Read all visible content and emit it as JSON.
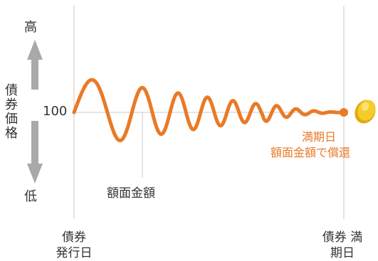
{
  "price_axis": {
    "title": "債券価格",
    "high": "高",
    "low": "低",
    "par": "100"
  },
  "labels": {
    "face_value": "額面金額",
    "issue_date": "債券 発行日",
    "maturity_date": "債券 満期日",
    "maturity_note_line1": "満期日",
    "maturity_note_line2": "額面金額で償還"
  },
  "colors": {
    "price_line": "#E97A26",
    "axis_arrow": "#A9A9A9",
    "guide_lines": "#C8C8C8",
    "coin": "#F2C21B"
  },
  "icons": {
    "coin": "gold-coin-icon",
    "arrow": "vertical-double-arrow-icon"
  }
}
